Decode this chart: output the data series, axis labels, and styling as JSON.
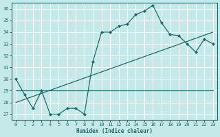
{
  "xlabel": "Humidex (Indice chaleur)",
  "background_color": "#c5e8e8",
  "grid_color": "#ffffff",
  "line_color": "#1a6b6b",
  "xlim": [
    -0.5,
    23.5
  ],
  "ylim": [
    26.5,
    36.5
  ],
  "xticks": [
    0,
    1,
    2,
    3,
    4,
    5,
    6,
    7,
    8,
    9,
    10,
    11,
    12,
    13,
    14,
    15,
    16,
    17,
    18,
    19,
    20,
    21,
    22,
    23
  ],
  "yticks": [
    27,
    28,
    29,
    30,
    31,
    32,
    33,
    34,
    35,
    36
  ],
  "line1_x": [
    0,
    1,
    2,
    3,
    4,
    5,
    6,
    7,
    8,
    9,
    10,
    11,
    12,
    13,
    14,
    15,
    16,
    17,
    18,
    19,
    20,
    21,
    22,
    23
  ],
  "line1_y": [
    30.0,
    28.7,
    27.5,
    29.0,
    27.0,
    27.0,
    27.5,
    27.5,
    27.0,
    31.5,
    34.0,
    34.0,
    34.5,
    34.7,
    35.5,
    35.8,
    36.3,
    34.8,
    33.8,
    33.7,
    33.0,
    32.3,
    33.4,
    33.0
  ],
  "line2_x": [
    0,
    23
  ],
  "line2_y": [
    29.0,
    29.0
  ],
  "line3_x": [
    0,
    23
  ],
  "line3_y": [
    28.0,
    34.0
  ],
  "marker": "D",
  "markersize": 2.2,
  "linewidth": 0.9
}
